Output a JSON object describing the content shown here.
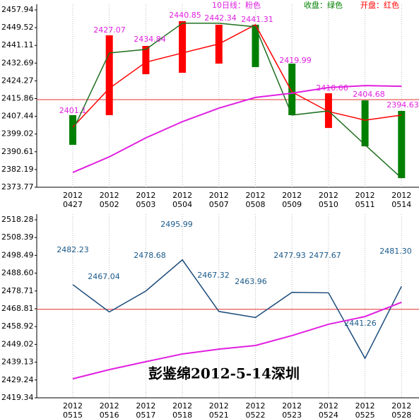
{
  "chart_data": [
    {
      "type": "candlestick",
      "legend": [
        {
          "text": "10日线：粉色",
          "color": "#e020e0"
        },
        {
          "text": "收盘：绿色",
          "color": "#008000"
        },
        {
          "text": "开盘：红色",
          "color": "#ff0000"
        }
      ],
      "category_year": "2012",
      "categories": [
        "0427",
        "0502",
        "0503",
        "0504",
        "0507",
        "0508",
        "0509",
        "0510",
        "0511",
        "0514"
      ],
      "ylim": [
        2373.77,
        2457.94
      ],
      "yticks": [
        2457.94,
        2449.52,
        2441.11,
        2432.69,
        2424.27,
        2415.86,
        2407.44,
        2399.02,
        2390.61,
        2382.19,
        2373.77
      ],
      "bar_low": [
        2393.9,
        2407.97,
        2427.43,
        2428.1,
        2432.45,
        2430.8,
        2407.97,
        2401.9,
        2393.2,
        2378.1
      ],
      "bar_high": [
        2407.97,
        2445.87,
        2440.84,
        2452.6,
        2450.9,
        2450.9,
        2432.45,
        2418.37,
        2415.0,
        2410.0
      ],
      "bar_colors": [
        "#008000",
        "#ff0000",
        "#ff0000",
        "#ff0000",
        "#ff0000",
        "#008000",
        "#008000",
        "#ff0000",
        "#008000",
        "#008000"
      ],
      "series": [
        {
          "color": "#ff0000",
          "values": [
            2402.3,
            2420.7,
            2433.1,
            2437.5,
            2441.8,
            2450.9,
            2419.0,
            2409.7,
            2405.6,
            2408.0
          ]
        },
        {
          "color": "#207020",
          "values": [
            2400.6,
            2437.5,
            2439.2,
            2451.6,
            2451.6,
            2449.9,
            2408.0,
            2410.0,
            2393.9,
            2378.1
          ]
        },
        {
          "color": "#e020e0",
          "values": [
            2380.8,
            2388.2,
            2397.2,
            2404.9,
            2411.3,
            2416.4,
            2418.4,
            2421.1,
            2422.0,
            2421.7
          ]
        }
      ],
      "point_labels": [
        "2401.1",
        "2427.07",
        "2434.84",
        "2440.85",
        "2442.34",
        "2441.31",
        "2419.99",
        "2410.66",
        "2404.68",
        "2394.63"
      ],
      "point_label_color": "#e020e0",
      "hline": {
        "value": 2415.35,
        "color": "#e03030"
      }
    },
    {
      "type": "line",
      "category_year": "2012",
      "categories": [
        "0515",
        "0516",
        "0517",
        "0518",
        "0521",
        "0522",
        "0523",
        "0524",
        "0525",
        "0528"
      ],
      "ylim": [
        2419.34,
        2518.28
      ],
      "yticks": [
        2518.28,
        2508.39,
        2498.49,
        {
          "value": 2488.6,
          "label": "2488.60"
        },
        2478.71,
        2468.81,
        2458.92,
        2449.02,
        2439.13,
        2429.24,
        2419.34
      ],
      "series": [
        {
          "color": "#1a4a7a",
          "values": [
            2482.23,
            2467.04,
            2478.68,
            2495.99,
            2467.32,
            2463.96,
            2477.93,
            2477.67,
            2441.26,
            2481.3
          ],
          "value_labels": [
            "2482.23",
            "2467.04",
            "2478.68",
            "2495.99",
            "2467.32",
            "2463.96",
            "2477.93",
            "2477.67",
            "2441.26",
            "2481.30"
          ]
        },
        {
          "color": "#e020e0",
          "values": [
            2429.9,
            2435.0,
            2439.4,
            2443.7,
            2446.4,
            2448.4,
            2453.9,
            2460.2,
            2464.5,
            2472.4
          ]
        }
      ],
      "hline": {
        "value": 2468.5,
        "color": "#e03030"
      },
      "annotation": "彭鉴绵2012-5-14深圳"
    }
  ]
}
